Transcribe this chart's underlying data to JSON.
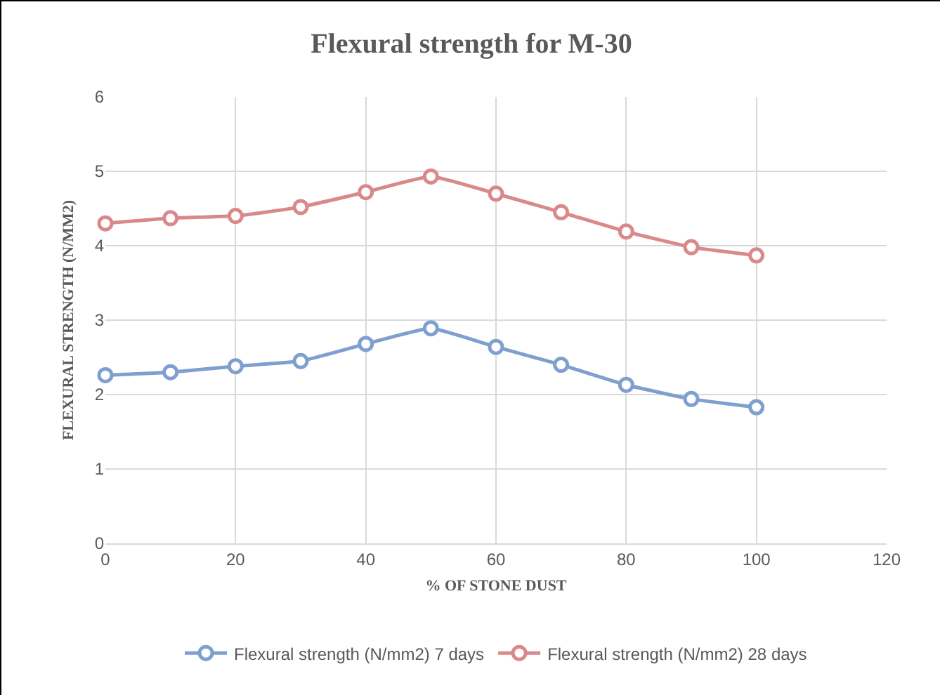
{
  "chart_data": {
    "type": "line",
    "title": "Flexural strength for M-30",
    "xlabel": "% OF STONE DUST",
    "ylabel": "FLEXURAL STRENGTH (N/MM2)",
    "x": [
      0,
      10,
      20,
      30,
      40,
      50,
      60,
      70,
      80,
      90,
      100
    ],
    "series": [
      {
        "name": "Flexural strength (N/mm2) 7 days",
        "color": "#7f9fcf",
        "values": [
          2.26,
          2.3,
          2.38,
          2.45,
          2.68,
          2.89,
          2.64,
          2.4,
          2.13,
          1.94,
          1.83
        ]
      },
      {
        "name": "Flexural strength (N/mm2) 28 days",
        "color": "#d9898a",
        "values": [
          4.3,
          4.37,
          4.4,
          4.52,
          4.72,
          4.93,
          4.7,
          4.45,
          4.19,
          3.98,
          3.87
        ]
      }
    ],
    "xlim": [
      0,
      120
    ],
    "xticks": [
      0,
      20,
      40,
      60,
      80,
      100,
      120
    ],
    "ylim": [
      0,
      6
    ],
    "yticks": [
      0,
      1,
      2,
      3,
      4,
      5,
      6
    ],
    "grid": true,
    "legend": "bottom",
    "marker": "circle",
    "line_style": "solid"
  }
}
